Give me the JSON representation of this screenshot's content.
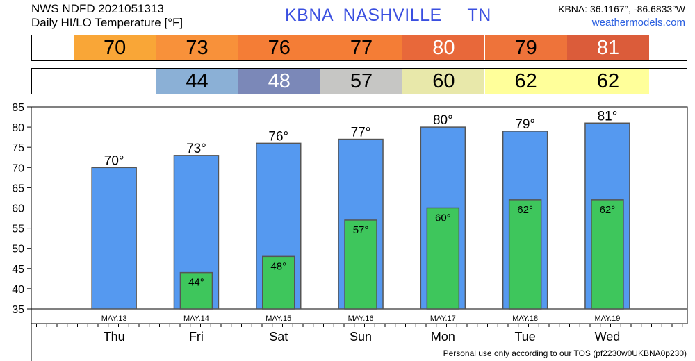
{
  "header": {
    "line1": "NWS NDFD 2021051313",
    "line2": "Daily HI/LO Temperature [°F]",
    "station": "KBNA  NASHVILLE     TN",
    "coords": "KBNA: 36.1167°, -86.6833°W",
    "site": "weathermodels.com"
  },
  "strips": {
    "hi": [
      {
        "text": "70",
        "color": "#f9a637",
        "fg": "#000000"
      },
      {
        "text": "73",
        "color": "#f8913a",
        "fg": "#000000"
      },
      {
        "text": "76",
        "color": "#f47d36",
        "fg": "#000000"
      },
      {
        "text": "77",
        "color": "#f47d36",
        "fg": "#000000"
      },
      {
        "text": "80",
        "color": "#e8683a",
        "fg": "#ffffff"
      },
      {
        "text": "79",
        "color": "#ee733a",
        "fg": "#000000"
      },
      {
        "text": "81",
        "color": "#db5c3a",
        "fg": "#ffffff"
      }
    ],
    "lo": [
      {
        "text": "",
        "color": "#ffffff",
        "fg": "#000000"
      },
      {
        "text": "44",
        "color": "#8bb0d6",
        "fg": "#000000"
      },
      {
        "text": "48",
        "color": "#7b88b8",
        "fg": "#ffffff"
      },
      {
        "text": "57",
        "color": "#c6c6c4",
        "fg": "#000000"
      },
      {
        "text": "60",
        "color": "#e8e8aa",
        "fg": "#000000"
      },
      {
        "text": "62",
        "color": "#ffff9a",
        "fg": "#000000"
      },
      {
        "text": "62",
        "color": "#ffff9a",
        "fg": "#000000"
      }
    ]
  },
  "chart_data": {
    "type": "bar",
    "categories": [
      "Thu",
      "Fri",
      "Sat",
      "Sun",
      "Mon",
      "Tue",
      "Wed"
    ],
    "dates": [
      "MAY.13",
      "MAY.14",
      "MAY.15",
      "MAY.16",
      "MAY.17",
      "MAY.18",
      "MAY.19"
    ],
    "series": [
      {
        "values": [
          70,
          73,
          76,
          77,
          80,
          79,
          81
        ],
        "color": "#5599f0"
      },
      {
        "values": [
          null,
          44,
          48,
          57,
          60,
          62,
          62
        ],
        "color": "#3ec65c"
      }
    ],
    "hi_labels": [
      "70°",
      "73°",
      "76°",
      "77°",
      "80°",
      "79°",
      "81°"
    ],
    "lo_labels": [
      "",
      "44°",
      "48°",
      "57°",
      "60°",
      "62°",
      "62°"
    ],
    "ylim": [
      35,
      85
    ],
    "yticks": [
      35,
      40,
      45,
      50,
      55,
      60,
      65,
      70,
      75,
      80,
      85
    ],
    "grid": false
  },
  "footer": "Personal use only according to our TOS (pf2230w0UKBNA0p230)"
}
